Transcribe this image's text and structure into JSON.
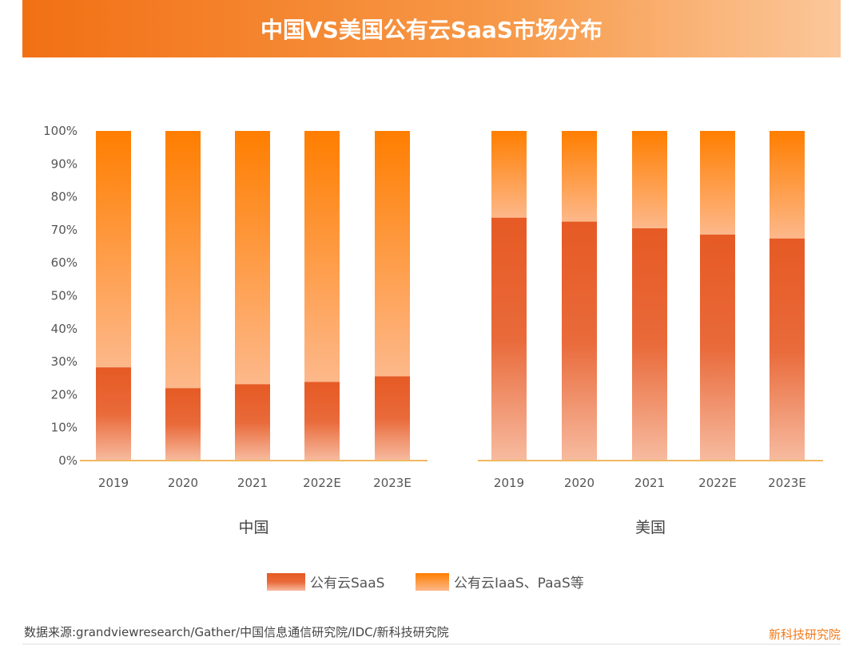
{
  "title": "中国VS美国公有云SaaS市场分布",
  "colors": {
    "saas": "#e65a24",
    "iaas_paas": "#ff7e00",
    "axis": "#f0b860",
    "title_bar": "#f47a1a"
  },
  "legend": [
    "公有云SaaS",
    "公有云IaaS、PaaS等"
  ],
  "source": "数据来源:grandviewresearch/Gather/中国信息通信研究院/IDC/新科技研究院",
  "brand": "新科技研究院",
  "chart_data": [
    {
      "type": "bar",
      "stacked": true,
      "xlabel": "中国",
      "categories": [
        "2019",
        "2020",
        "2021",
        "2022E",
        "2023E"
      ],
      "yticks": [
        "0%",
        "10%",
        "20%",
        "30%",
        "40%",
        "50%",
        "60%",
        "70%",
        "80%",
        "90%",
        "100%"
      ],
      "ylim": [
        0,
        100
      ],
      "series": [
        {
          "name": "公有云SaaS",
          "values": [
            28.3,
            22.0,
            23.2,
            23.9,
            25.6
          ]
        },
        {
          "name": "公有云IaaS、PaaS等",
          "values": [
            71.7,
            78.0,
            76.8,
            76.1,
            74.4
          ]
        }
      ]
    },
    {
      "type": "bar",
      "stacked": true,
      "xlabel": "美国",
      "categories": [
        "2019",
        "2020",
        "2021",
        "2022E",
        "2023E"
      ],
      "ylim": [
        0,
        100
      ],
      "series": [
        {
          "name": "公有云SaaS",
          "values": [
            73.7,
            72.5,
            70.5,
            68.6,
            67.4
          ]
        },
        {
          "name": "公有云IaaS、PaaS等",
          "values": [
            26.3,
            27.5,
            29.5,
            31.4,
            32.6
          ]
        }
      ]
    }
  ]
}
